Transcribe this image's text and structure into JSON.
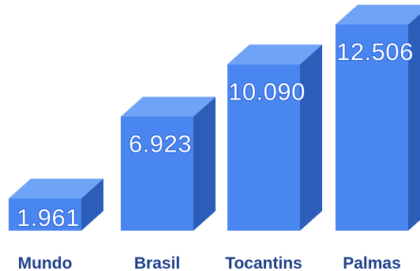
{
  "chart_data": {
    "type": "bar",
    "style": "3d-columns",
    "categories": [
      "Mundo",
      "Brasil",
      "Tocantins",
      "Palmas"
    ],
    "values": [
      1961,
      6923,
      10090,
      12506
    ],
    "value_labels": [
      "1.961",
      "6.923",
      "10.090",
      "12.506"
    ],
    "title": "",
    "xlabel": "",
    "ylabel": "",
    "ylim": [
      0,
      12506
    ],
    "grid": false,
    "legend": "none",
    "colors": {
      "front": "#4a86ef",
      "top": "#6ea3f5",
      "side": "#2c5db8",
      "category_text": "#1e3f88",
      "value_text": "#ffffff",
      "value_outline": "#1f5ad6"
    }
  }
}
